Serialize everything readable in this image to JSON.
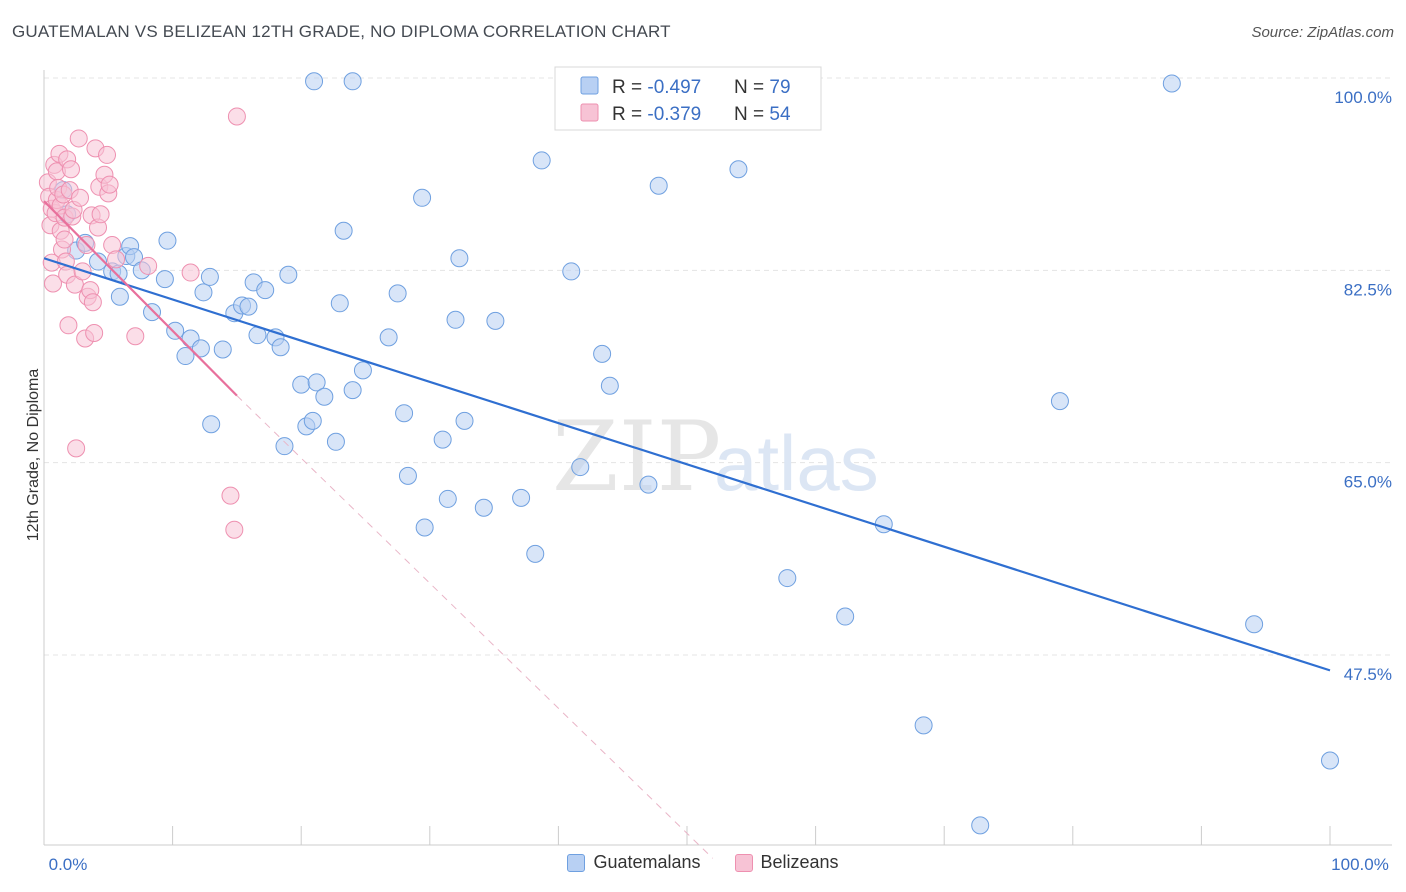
{
  "title": "GUATEMALAN VS BELIZEAN 12TH GRADE, NO DIPLOMA CORRELATION CHART",
  "source": "Source: ZipAtlas.com",
  "watermark": {
    "part1": "ZIP",
    "part2": "atlas"
  },
  "chart_data": {
    "type": "scatter",
    "title": "GUATEMALAN VS BELIZEAN 12TH GRADE, NO DIPLOMA CORRELATION CHART",
    "xlabel": "",
    "ylabel": "12th Grade, No Diploma",
    "xlim": [
      0,
      100
    ],
    "ylim": [
      30,
      102
    ],
    "x_tick_labels": {
      "min": "0.0%",
      "max": "100.0%"
    },
    "y_ticks": [
      {
        "value": 100.0,
        "label": "100.0%"
      },
      {
        "value": 82.5,
        "label": "82.5%"
      },
      {
        "value": 65.0,
        "label": "65.0%"
      },
      {
        "value": 47.5,
        "label": "47.5%"
      }
    ],
    "grid": true,
    "legend_position": "top-center",
    "series": [
      {
        "name": "Guatemalans",
        "color": "#6fa0e0",
        "fill": "#b8d0f3",
        "line_color": "#2f6fd1",
        "R": "-0.497",
        "N": "79",
        "trend": {
          "x": [
            0,
            100
          ],
          "y": [
            83.6,
            46.1
          ]
        },
        "points": [
          [
            1.5,
            89.8
          ],
          [
            1.8,
            87.6
          ],
          [
            2.5,
            84.3
          ],
          [
            3.2,
            85.0
          ],
          [
            4.2,
            83.3
          ],
          [
            5.3,
            82.4
          ],
          [
            5.8,
            82.2
          ],
          [
            6.4,
            83.8
          ],
          [
            6.7,
            84.7
          ],
          [
            5.9,
            80.1
          ],
          [
            7.0,
            83.7
          ],
          [
            7.6,
            82.5
          ],
          [
            8.4,
            78.7
          ],
          [
            9.4,
            81.7
          ],
          [
            9.6,
            85.2
          ],
          [
            10.2,
            77.0
          ],
          [
            11.0,
            74.7
          ],
          [
            11.4,
            76.3
          ],
          [
            12.4,
            80.5
          ],
          [
            12.2,
            75.4
          ],
          [
            12.9,
            81.9
          ],
          [
            13.0,
            68.5
          ],
          [
            13.9,
            75.3
          ],
          [
            14.8,
            78.6
          ],
          [
            15.4,
            79.3
          ],
          [
            15.9,
            79.2
          ],
          [
            16.3,
            81.4
          ],
          [
            16.6,
            76.6
          ],
          [
            17.2,
            80.7
          ],
          [
            18.0,
            76.4
          ],
          [
            18.4,
            75.5
          ],
          [
            18.7,
            66.5
          ],
          [
            19.0,
            82.1
          ],
          [
            20.0,
            72.1
          ],
          [
            20.4,
            68.3
          ],
          [
            20.9,
            68.8
          ],
          [
            21.2,
            72.3
          ],
          [
            21.8,
            71.0
          ],
          [
            22.7,
            66.9
          ],
          [
            23.0,
            79.5
          ],
          [
            23.3,
            86.1
          ],
          [
            24.0,
            71.6
          ],
          [
            24.8,
            73.4
          ],
          [
            26.8,
            76.4
          ],
          [
            27.5,
            80.4
          ],
          [
            28.0,
            69.5
          ],
          [
            28.3,
            63.8
          ],
          [
            29.4,
            89.1
          ],
          [
            29.6,
            59.1
          ],
          [
            31.0,
            67.1
          ],
          [
            31.4,
            61.7
          ],
          [
            32.0,
            78.0
          ],
          [
            32.3,
            83.6
          ],
          [
            32.7,
            68.8
          ],
          [
            34.2,
            60.9
          ],
          [
            35.1,
            77.9
          ],
          [
            37.1,
            61.8
          ],
          [
            38.2,
            56.7
          ],
          [
            38.7,
            92.5
          ],
          [
            41.0,
            82.4
          ],
          [
            41.7,
            64.6
          ],
          [
            43.4,
            74.9
          ],
          [
            44.0,
            72.0
          ],
          [
            44.7,
            97.2
          ],
          [
            47.0,
            63.0
          ],
          [
            47.8,
            90.2
          ],
          [
            21.0,
            99.7
          ],
          [
            24.0,
            99.7
          ],
          [
            48.5,
            99.5
          ],
          [
            54.0,
            91.7
          ],
          [
            57.8,
            54.5
          ],
          [
            62.3,
            51.0
          ],
          [
            65.3,
            59.4
          ],
          [
            68.4,
            41.1
          ],
          [
            72.8,
            32.0
          ],
          [
            79.0,
            70.6
          ],
          [
            87.7,
            99.5
          ],
          [
            94.1,
            50.3
          ],
          [
            100.0,
            37.9
          ]
        ]
      },
      {
        "name": "Belizeans",
        "color": "#ee90b0",
        "fill": "#f7c3d5",
        "line_color": "#e8709c",
        "R": "-0.379",
        "N": "54",
        "trend": {
          "x": [
            0,
            15
          ],
          "y": [
            88.8,
            71.1
          ]
        },
        "trend_extension": {
          "x": [
            15,
            52
          ],
          "y": [
            71.1,
            29.0
          ]
        },
        "points": [
          [
            0.3,
            90.5
          ],
          [
            0.4,
            89.2
          ],
          [
            0.5,
            86.6
          ],
          [
            0.6,
            88.1
          ],
          [
            0.6,
            83.2
          ],
          [
            0.7,
            81.3
          ],
          [
            0.8,
            92.1
          ],
          [
            0.9,
            87.7
          ],
          [
            1.0,
            88.9
          ],
          [
            1.0,
            91.5
          ],
          [
            1.1,
            90.0
          ],
          [
            1.2,
            93.1
          ],
          [
            1.3,
            86.1
          ],
          [
            1.3,
            88.4
          ],
          [
            1.4,
            84.4
          ],
          [
            1.5,
            89.4
          ],
          [
            1.6,
            87.3
          ],
          [
            1.6,
            85.3
          ],
          [
            1.7,
            83.3
          ],
          [
            1.8,
            82.1
          ],
          [
            1.8,
            92.6
          ],
          [
            1.9,
            77.5
          ],
          [
            2.0,
            89.8
          ],
          [
            2.1,
            91.7
          ],
          [
            2.2,
            87.4
          ],
          [
            2.3,
            88.0
          ],
          [
            2.4,
            81.2
          ],
          [
            2.5,
            66.3
          ],
          [
            2.7,
            94.5
          ],
          [
            2.8,
            89.1
          ],
          [
            3.0,
            82.4
          ],
          [
            3.2,
            76.3
          ],
          [
            3.3,
            84.8
          ],
          [
            3.4,
            80.1
          ],
          [
            3.6,
            80.7
          ],
          [
            3.7,
            87.5
          ],
          [
            3.8,
            79.6
          ],
          [
            3.9,
            76.8
          ],
          [
            4.0,
            93.6
          ],
          [
            4.2,
            86.4
          ],
          [
            4.3,
            90.1
          ],
          [
            4.4,
            87.6
          ],
          [
            4.7,
            91.2
          ],
          [
            4.9,
            93.0
          ],
          [
            5.0,
            89.5
          ],
          [
            5.1,
            90.3
          ],
          [
            5.3,
            84.8
          ],
          [
            5.6,
            83.5
          ],
          [
            7.1,
            76.5
          ],
          [
            8.1,
            82.9
          ],
          [
            14.5,
            62.0
          ],
          [
            14.8,
            58.9
          ],
          [
            11.4,
            82.3
          ],
          [
            15.0,
            96.5
          ]
        ]
      }
    ]
  },
  "legend": {
    "rows": [
      {
        "r_label": "R = ",
        "r_value": "-0.497",
        "n_label": "N = ",
        "n_value": "79"
      },
      {
        "r_label": "R = ",
        "r_value": "-0.379",
        "n_label": "N = ",
        "n_value": "54"
      }
    ]
  },
  "bottom_legend": {
    "items": [
      "Guatemalans",
      "Belizeans"
    ]
  }
}
